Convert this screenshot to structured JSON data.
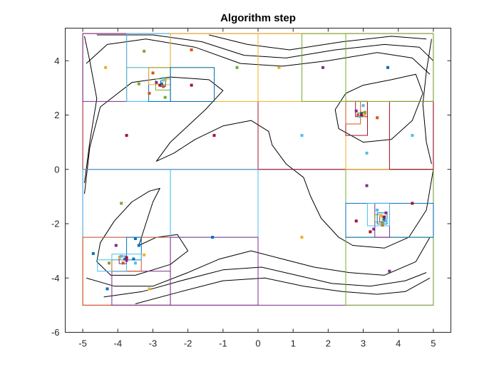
{
  "chart_data": {
    "type": "scatter",
    "title": "Algorithm step",
    "xlabel": "",
    "ylabel": "",
    "xlim": [
      -5.5,
      5.5
    ],
    "ylim": [
      -6,
      5.2
    ],
    "xticks": [
      -5,
      -4,
      -3,
      -2,
      -1,
      0,
      1,
      2,
      3,
      4,
      5
    ],
    "yticks": [
      -6,
      -4,
      -2,
      0,
      2,
      4
    ],
    "grid": false,
    "domain_box": [
      -5,
      5,
      -5,
      5
    ],
    "contour_levels": [
      {
        "level": "inner",
        "points": [
          [
            -3.4,
            -2.8
          ],
          [
            -3.2,
            -2.0
          ],
          [
            -3.0,
            -1.2
          ],
          [
            -2.8,
            -0.7
          ],
          [
            -3.1,
            -0.8
          ],
          [
            -3.6,
            -1.2
          ],
          [
            -4.1,
            -1.9
          ],
          [
            -4.5,
            -2.7
          ],
          [
            -4.6,
            -3.4
          ],
          [
            -4.2,
            -3.9
          ],
          [
            -3.5,
            -3.9
          ],
          [
            -2.5,
            -3.5
          ],
          [
            -2.0,
            -3.0
          ],
          [
            -2.3,
            -2.4
          ],
          [
            -2.9,
            -2.5
          ],
          [
            -3.4,
            -2.8
          ]
        ]
      },
      {
        "level": "mid",
        "points": [
          [
            -4.95,
            -0.9
          ],
          [
            -4.8,
            0.8
          ],
          [
            -4.5,
            2.3
          ],
          [
            -3.6,
            3.2
          ],
          [
            -2.5,
            3.4
          ],
          [
            -1.4,
            3.3
          ],
          [
            -1.0,
            2.9
          ],
          [
            -1.5,
            2.2
          ],
          [
            -2.5,
            1.0
          ],
          [
            -2.9,
            0.3
          ],
          [
            -2.4,
            0.6
          ],
          [
            -1.8,
            1.1
          ],
          [
            -1.0,
            1.6
          ],
          [
            -0.2,
            1.8
          ],
          [
            0.3,
            1.4
          ],
          [
            0.4,
            0.9
          ],
          [
            0.8,
            0.2
          ],
          [
            1.3,
            -0.3
          ],
          [
            1.5,
            -1.0
          ],
          [
            1.8,
            -1.8
          ],
          [
            2.3,
            -2.5
          ],
          [
            2.7,
            -2.8
          ],
          [
            3.6,
            -2.9
          ],
          [
            4.3,
            -2.5
          ],
          [
            4.8,
            -1.5
          ],
          [
            5.0,
            0.0
          ]
        ]
      },
      {
        "level": "outer1",
        "points": [
          [
            -4.9,
            -4.0
          ],
          [
            -4.1,
            -4.3
          ],
          [
            -3.0,
            -4.3
          ],
          [
            -2.0,
            -3.8
          ],
          [
            -1.1,
            -3.3
          ],
          [
            -0.2,
            -3.0
          ],
          [
            0.7,
            -3.3
          ],
          [
            1.6,
            -3.6
          ],
          [
            2.6,
            -3.8
          ],
          [
            3.6,
            -3.9
          ],
          [
            4.5,
            -3.4
          ],
          [
            4.9,
            -2.5
          ]
        ]
      },
      {
        "level": "outer2",
        "points": [
          [
            -4.4,
            -4.7
          ],
          [
            -3.3,
            -4.5
          ],
          [
            -2.2,
            -4.1
          ],
          [
            -1.0,
            -3.7
          ],
          [
            0.1,
            -3.6
          ],
          [
            1.1,
            -3.9
          ],
          [
            2.1,
            -4.2
          ],
          [
            3.2,
            -4.3
          ],
          [
            4.2,
            -4.1
          ],
          [
            4.8,
            -3.8
          ]
        ]
      },
      {
        "level": "outer3",
        "points": [
          [
            -3.5,
            -4.95
          ],
          [
            -2.2,
            -4.5
          ],
          [
            -1.0,
            -4.1
          ],
          [
            0.2,
            -4.0
          ],
          [
            1.3,
            -4.3
          ],
          [
            2.4,
            -4.5
          ],
          [
            3.4,
            -4.6
          ],
          [
            4.2,
            -4.5
          ],
          [
            4.9,
            -4.0
          ]
        ]
      },
      {
        "level": "top1",
        "points": [
          [
            -4.9,
            3.9
          ],
          [
            -4.3,
            4.6
          ],
          [
            -3.2,
            4.8
          ],
          [
            -1.8,
            4.5
          ],
          [
            -0.5,
            3.9
          ],
          [
            0.7,
            3.8
          ],
          [
            2.0,
            4.0
          ],
          [
            3.4,
            4.3
          ],
          [
            4.4,
            4.1
          ],
          [
            4.9,
            3.5
          ]
        ]
      },
      {
        "level": "top2",
        "points": [
          [
            -4.6,
            4.95
          ],
          [
            -3.0,
            4.95
          ],
          [
            -1.6,
            4.7
          ],
          [
            -0.4,
            4.2
          ],
          [
            0.8,
            4.1
          ],
          [
            2.2,
            4.4
          ],
          [
            3.6,
            4.6
          ],
          [
            4.6,
            4.5
          ],
          [
            5.0,
            4.0
          ]
        ]
      },
      {
        "level": "top3",
        "points": [
          [
            -1.4,
            4.95
          ],
          [
            -0.3,
            4.6
          ],
          [
            0.9,
            4.4
          ],
          [
            2.4,
            4.7
          ],
          [
            3.8,
            4.9
          ],
          [
            4.8,
            4.8
          ]
        ]
      },
      {
        "level": "right-inner",
        "points": [
          [
            2.5,
            2.8
          ],
          [
            2.2,
            2.2
          ],
          [
            2.3,
            1.5
          ],
          [
            3.0,
            1.0
          ],
          [
            3.8,
            1.1
          ],
          [
            4.4,
            1.8
          ],
          [
            4.7,
            2.8
          ],
          [
            4.5,
            3.5
          ],
          [
            3.8,
            3.3
          ],
          [
            3.0,
            3.1
          ],
          [
            2.5,
            2.8
          ]
        ]
      },
      {
        "level": "left-outer",
        "points": [
          [
            -4.95,
            4.9
          ],
          [
            -4.8,
            4.0
          ],
          [
            -4.6,
            2.6
          ],
          [
            -4.8,
            1.0
          ],
          [
            -4.95,
            -0.5
          ]
        ]
      },
      {
        "level": "right-outer",
        "points": [
          [
            4.95,
            4.8
          ],
          [
            4.8,
            3.6
          ],
          [
            4.7,
            2.4
          ],
          [
            4.8,
            1.0
          ],
          [
            4.95,
            0.2
          ]
        ]
      }
    ],
    "rectangles": [
      {
        "x0": -5,
        "x1": 0,
        "y0": -5,
        "y1": 0,
        "color": "#7e2f8e"
      },
      {
        "x0": 0,
        "x1": 5,
        "y0": -5,
        "y1": 0,
        "color": "#7e2f8e"
      },
      {
        "x0": -5,
        "x1": 0,
        "y0": 0,
        "y1": 5,
        "color": "#a2142f"
      },
      {
        "x0": 0,
        "x1": 5,
        "y0": 0,
        "y1": 5,
        "color": "#a2142f"
      },
      {
        "x0": -5,
        "x1": -2.5,
        "y0": -2.5,
        "y1": 0,
        "color": "#4dbeee"
      },
      {
        "x0": -2.5,
        "x1": 0,
        "y0": -2.5,
        "y1": 0,
        "color": "#4dbeee"
      },
      {
        "x0": -5,
        "x1": -2.5,
        "y0": -5,
        "y1": -2.5,
        "color": "#d95319"
      },
      {
        "x0": -2.5,
        "x1": 0,
        "y0": -5,
        "y1": -2.5,
        "color": "#7e2f8e"
      },
      {
        "x0": -4.17,
        "x1": -2.5,
        "y0": -5,
        "y1": -3.75,
        "color": "#7e2f8e"
      },
      {
        "x0": -4.17,
        "x1": -3.33,
        "y0": -3.75,
        "y1": -3.33,
        "color": "#d95319"
      },
      {
        "x0": -3.75,
        "x1": -3.33,
        "y0": -3.33,
        "y1": -2.5,
        "color": "#0072bd"
      },
      {
        "x0": -4.58,
        "x1": -3.75,
        "y0": -3.75,
        "y1": -3.33,
        "color": "#4dbeee"
      },
      {
        "x0": -4.17,
        "x1": -3.33,
        "y0": -3.33,
        "y1": -3.12,
        "color": "#4dbeee"
      },
      {
        "x0": -3.96,
        "x1": -3.75,
        "y0": -3.47,
        "y1": -3.19,
        "color": "#7e2f8e"
      },
      {
        "x0": 2.5,
        "x1": 5,
        "y0": -5,
        "y1": -2.5,
        "color": "#77ac30"
      },
      {
        "x0": 2.5,
        "x1": 5,
        "y0": -2.5,
        "y1": 0,
        "color": "#77ac30"
      },
      {
        "x0": 2.5,
        "x1": 5,
        "y0": -2.5,
        "y1": -1.25,
        "color": "#0072bd"
      },
      {
        "x0": 3.33,
        "x1": 3.75,
        "y0": -2.5,
        "y1": -1.25,
        "color": "#7e2f8e"
      },
      {
        "x0": 3.12,
        "x1": 3.75,
        "y0": -2.08,
        "y1": -1.25,
        "color": "#4dbeee"
      },
      {
        "x0": 3.33,
        "x1": 3.54,
        "y0": -1.94,
        "y1": -1.67,
        "color": "#77ac30"
      },
      {
        "x0": 3.4,
        "x1": 3.68,
        "y0": -2.01,
        "y1": -1.6,
        "color": "#0072bd"
      },
      {
        "x0": 3.47,
        "x1": 3.61,
        "y0": -1.94,
        "y1": -1.74,
        "color": "#7e2f8e"
      },
      {
        "x0": 2.5,
        "x1": 3.75,
        "y0": 0,
        "y1": 2.5,
        "color": "#edb120"
      },
      {
        "x0": 2.5,
        "x1": 3.12,
        "y0": 1.25,
        "y1": 2.5,
        "color": "#a2142f"
      },
      {
        "x0": 2.5,
        "x1": 2.92,
        "y0": 1.67,
        "y1": 2.5,
        "color": "#d95319"
      },
      {
        "x0": 2.78,
        "x1": 3.12,
        "y0": 1.94,
        "y1": 2.5,
        "color": "#a2142f"
      },
      {
        "x0": 2.85,
        "x1": 3.05,
        "y0": 1.94,
        "y1": 2.08,
        "color": "#77ac30"
      },
      {
        "x0": 2.92,
        "x1": 3.02,
        "y0": 1.99,
        "y1": 2.11,
        "color": "#d95319"
      },
      {
        "x0": 3.75,
        "x1": 5,
        "y0": 0,
        "y1": 2.5,
        "color": "#a2142f"
      },
      {
        "x0": 0,
        "x1": 2.5,
        "y0": 2.5,
        "y1": 5,
        "color": "#edb120"
      },
      {
        "x0": 2.5,
        "x1": 5,
        "y0": 2.5,
        "y1": 5,
        "color": "#77ac30"
      },
      {
        "x0": 1.25,
        "x1": 2.5,
        "y0": 2.5,
        "y1": 5,
        "color": "#77ac30"
      },
      {
        "x0": -5,
        "x1": -3.75,
        "y0": 2.5,
        "y1": 5,
        "color": "#7e2f8e"
      },
      {
        "x0": -3.75,
        "x1": -2.5,
        "y0": 2.5,
        "y1": 5,
        "color": "#4dbeee"
      },
      {
        "x0": -2.5,
        "x1": 0,
        "y0": 2.5,
        "y1": 5,
        "color": "#edb120"
      },
      {
        "x0": -3.75,
        "x1": -1.25,
        "y0": 2.5,
        "y1": 3.75,
        "color": "#edb120"
      },
      {
        "x0": -3.75,
        "x1": -2.5,
        "y0": 2.5,
        "y1": 3.75,
        "color": "#4dbeee"
      },
      {
        "x0": -3.12,
        "x1": -2.5,
        "y0": 2.5,
        "y1": 3.75,
        "color": "#0072bd"
      },
      {
        "x0": -3.12,
        "x1": -2.5,
        "y0": 3.12,
        "y1": 3.75,
        "color": "#edb120"
      },
      {
        "x0": -2.92,
        "x1": -2.5,
        "y0": 2.92,
        "y1": 3.33,
        "color": "#77ac30"
      },
      {
        "x0": -2.78,
        "x1": -2.64,
        "y0": 3.05,
        "y1": 3.26,
        "color": "#0072bd"
      },
      {
        "x0": -2.5,
        "x1": -1.25,
        "y0": 2.5,
        "y1": 3.75,
        "color": "#0072bd"
      }
    ],
    "series": [
      {
        "color": "#0072bd",
        "points": [
          [
            -4.7,
            -3.1
          ],
          [
            -3.4,
            -2.8
          ],
          [
            -4.3,
            -4.4
          ],
          [
            -1.3,
            -2.5
          ],
          [
            3.7,
            3.75
          ],
          [
            -2.75,
            3.15
          ],
          [
            3.6,
            -1.85
          ],
          [
            2.95,
            2.05
          ],
          [
            -3.8,
            -3.3
          ],
          [
            -3.55,
            -3.3
          ],
          [
            -3.5,
            -2.55
          ]
        ]
      },
      {
        "color": "#d95319",
        "points": [
          [
            -1.9,
            4.4
          ],
          [
            -3.1,
            2.8
          ],
          [
            -3.85,
            -3.45
          ],
          [
            3.4,
            1.9
          ],
          [
            3.55,
            -2.05
          ],
          [
            2.85,
            2.0
          ],
          [
            -3.0,
            3.55
          ],
          [
            -2.7,
            3.05
          ]
        ]
      },
      {
        "color": "#edb120",
        "points": [
          [
            -4.35,
            3.75
          ],
          [
            0.6,
            3.75
          ],
          [
            1.25,
            -2.5
          ],
          [
            -3.1,
            -4.4
          ],
          [
            -2.65,
            3.3
          ],
          [
            3.05,
            2.05
          ],
          [
            3.5,
            -1.7
          ],
          [
            -3.95,
            -3.25
          ],
          [
            -3.25,
            -3.15
          ]
        ]
      },
      {
        "color": "#7e2f8e",
        "points": [
          [
            1.85,
            3.75
          ],
          [
            3.1,
            -0.6
          ],
          [
            -4.05,
            -2.8
          ],
          [
            3.75,
            -3.75
          ],
          [
            3.3,
            -2.2
          ],
          [
            3.65,
            -1.6
          ],
          [
            -2.9,
            3.2
          ],
          [
            2.8,
            2.15
          ],
          [
            -3.75,
            -3.35
          ]
        ]
      },
      {
        "color": "#77ac30",
        "points": [
          [
            -0.6,
            3.75
          ],
          [
            -3.9,
            -1.25
          ],
          [
            -3.4,
            3.15
          ],
          [
            -3.25,
            4.35
          ],
          [
            -2.65,
            2.65
          ],
          [
            3.05,
            2.1
          ],
          [
            3.55,
            -2.0
          ],
          [
            -4.25,
            -3.45
          ]
        ]
      },
      {
        "color": "#4dbeee",
        "points": [
          [
            1.25,
            1.25
          ],
          [
            4.4,
            1.25
          ],
          [
            3.1,
            0.6
          ],
          [
            3.4,
            -1.5
          ],
          [
            3.65,
            -1.9
          ],
          [
            -3.9,
            -3.2
          ],
          [
            -3.5,
            -3.45
          ],
          [
            -2.7,
            3.35
          ],
          [
            2.9,
            1.95
          ],
          [
            3.0,
            2.35
          ]
        ]
      },
      {
        "color": "#a2142f",
        "points": [
          [
            -3.75,
            1.25
          ],
          [
            -1.25,
            1.25
          ],
          [
            -1.9,
            3.1
          ],
          [
            2.8,
            -1.9
          ],
          [
            4.4,
            -1.25
          ],
          [
            3.6,
            -1.75
          ],
          [
            2.95,
            2.0
          ],
          [
            3.2,
            -2.3
          ],
          [
            -2.8,
            3.1
          ],
          [
            -3.75,
            -3.25
          ]
        ]
      }
    ]
  }
}
